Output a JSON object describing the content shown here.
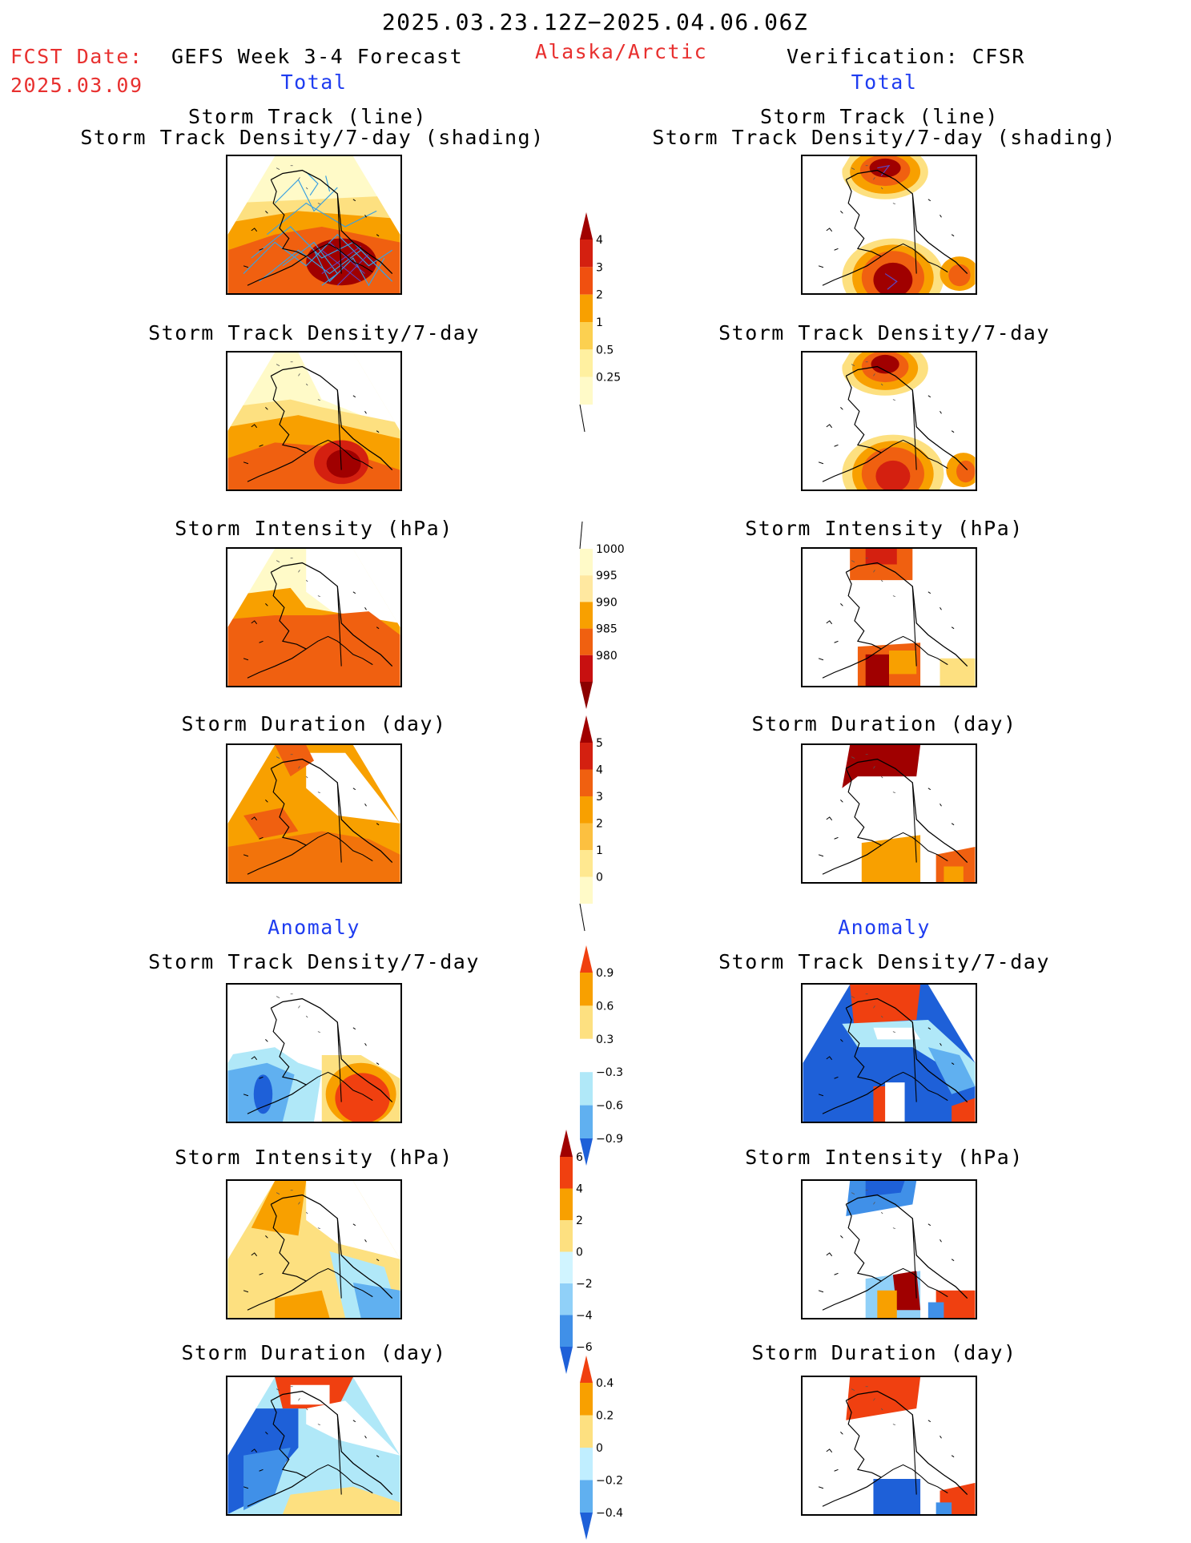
{
  "header": {
    "date_range": "2025.03.23.12Z−2025.04.06.06Z",
    "fcst_label": "FCST Date:",
    "fcst_date": "2025.03.09",
    "forecast_title": "GEFS Week 3-4 Forecast",
    "region": "Alaska/Arctic",
    "verification": "Verification: CFSR",
    "left_sub": "Total",
    "right_sub": "Total"
  },
  "sections": {
    "anomaly_left": "Anomaly",
    "anomaly_right": "Anomaly"
  },
  "panel_titles": {
    "p1a": "Storm Track (line)",
    "p1b": "Storm Track Density/7-day (shading)",
    "p2": "Storm Track Density/7-day",
    "p3": "Storm Intensity (hPa)",
    "p4": "Storm Duration (day)",
    "p5": "Storm Track Density/7-day",
    "p6": "Storm Intensity (hPa)",
    "p7": "Storm Duration (day)"
  },
  "colorbars": {
    "density": {
      "labels": [
        "4",
        "3",
        "2",
        "1",
        "0.5",
        "0.25"
      ],
      "colors": [
        "#a00000",
        "#d42010",
        "#f05010",
        "#f8a000",
        "#fcd050",
        "#fff0a0",
        "#fffac8"
      ]
    },
    "intensity": {
      "labels": [
        "1000",
        "995",
        "990",
        "985",
        "980"
      ],
      "colors": [
        "#fffac8",
        "#ffe8a0",
        "#f8a000",
        "#f06010",
        "#c81010",
        "#8c0000"
      ]
    },
    "duration": {
      "labels": [
        "5",
        "4",
        "3",
        "2",
        "1",
        "0"
      ],
      "colors": [
        "#a00000",
        "#d42010",
        "#f06010",
        "#f8a000",
        "#fcc040",
        "#ffe890",
        "#fffac8"
      ]
    },
    "anom_density": {
      "labels": [
        "0.9",
        "0.6",
        "0.3",
        "−0.3",
        "−0.6",
        "−0.9"
      ],
      "colors": [
        "#f04010",
        "#f8a000",
        "#fde080",
        "#ffffff",
        "#b0e8f8",
        "#60b0f0",
        "#1e60d8"
      ]
    },
    "anom_intensity": {
      "labels": [
        "6",
        "4",
        "2",
        "0",
        "−2",
        "−4",
        "−6"
      ],
      "colors": [
        "#a00000",
        "#f04010",
        "#f8a000",
        "#fde080",
        "#d0f4ff",
        "#90d0f8",
        "#4090e8",
        "#1e60d8"
      ]
    },
    "anom_duration": {
      "labels": [
        "0.4",
        "0.2",
        "0",
        "−0.2",
        "−0.4"
      ],
      "colors": [
        "#f04010",
        "#f8a000",
        "#fde080",
        "#c0eeff",
        "#60b0f0",
        "#1e60d8"
      ]
    }
  }
}
